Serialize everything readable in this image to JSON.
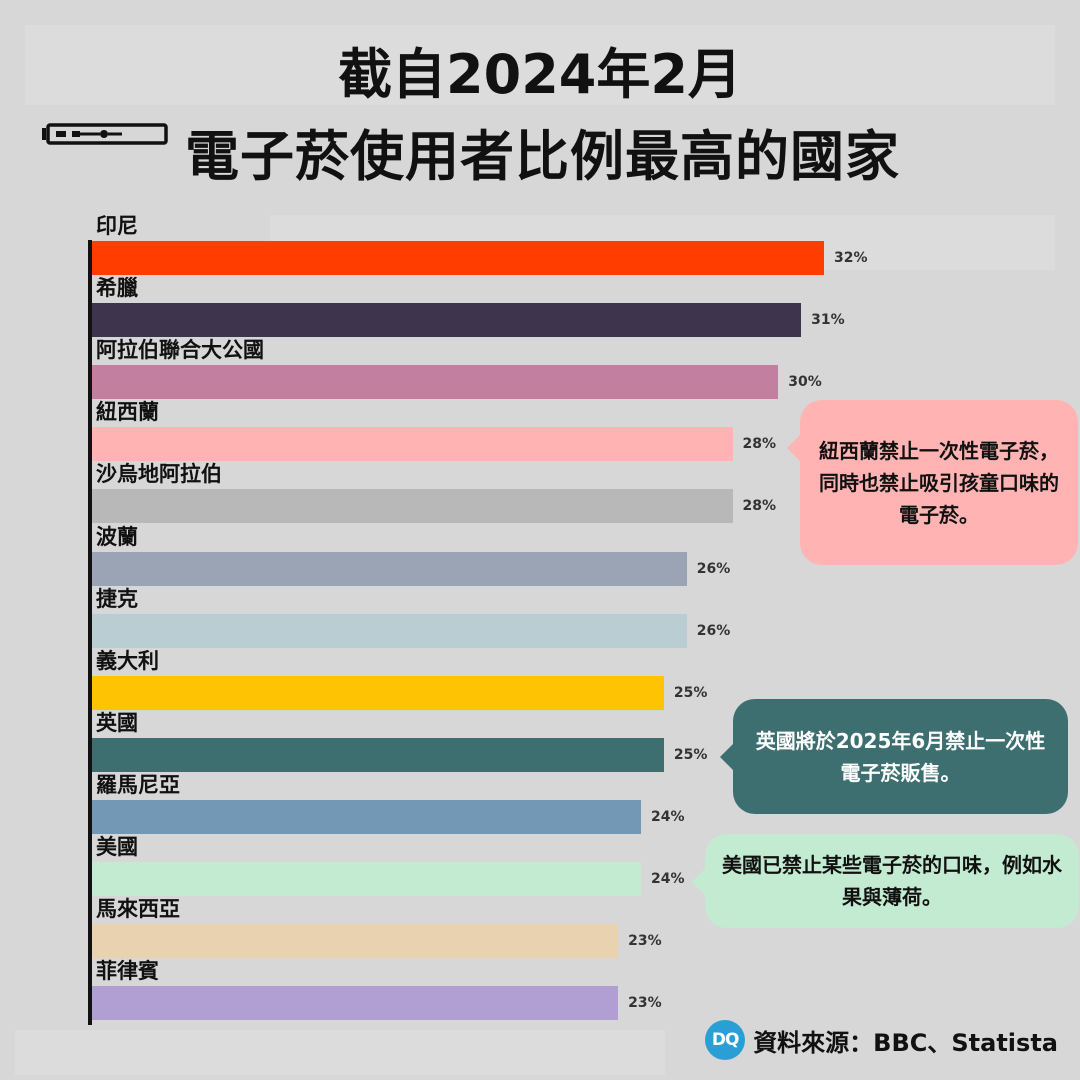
{
  "title": {
    "line1": "截自2024年2月",
    "line2": "電子菸使用者比例最高的國家"
  },
  "chart_data": {
    "type": "bar",
    "orientation": "horizontal",
    "categories": [
      "印尼",
      "希臘",
      "阿拉伯聯合大公國",
      "紐西蘭",
      "沙烏地阿拉伯",
      "波蘭",
      "捷克",
      "義大利",
      "英國",
      "羅馬尼亞",
      "美國",
      "馬來西亞",
      "菲律賓"
    ],
    "values": [
      32,
      31,
      30,
      28,
      28,
      26,
      26,
      25,
      25,
      24,
      24,
      23,
      23
    ],
    "value_labels": [
      "32%",
      "31%",
      "30%",
      "28%",
      "28%",
      "26%",
      "26%",
      "25%",
      "25%",
      "24%",
      "24%",
      "23%",
      "23%"
    ],
    "unit": "%",
    "bar_colors": [
      "#ff3d00",
      "#3f344d",
      "#c27fa0",
      "#ffb3b3",
      "#b8b8b8",
      "#9aa4b4",
      "#b9cdd2",
      "#fec404",
      "#3e6f70",
      "#7398b5",
      "#c3ebd1",
      "#e8d2b0",
      "#b19fd3"
    ],
    "xlim": [
      0,
      32
    ],
    "grid": false,
    "legend": "none"
  },
  "callouts": [
    {
      "text": "紐西蘭禁止一次性電子菸，同時也禁止吸引孩童口味的電子菸。",
      "bg": "#ffb3b3",
      "color": "#111111"
    },
    {
      "text": "英國將於2025年6月禁止一次性電子菸販售。",
      "bg": "#3e6f70",
      "color": "#ffffff"
    },
    {
      "text": "美國已禁止某些電子菸的口味，例如水果與薄荷。",
      "bg": "#c3ebd1",
      "color": "#111111"
    }
  ],
  "source": {
    "logo_text": "DQ",
    "text": "資料來源：BBC、Statista"
  }
}
